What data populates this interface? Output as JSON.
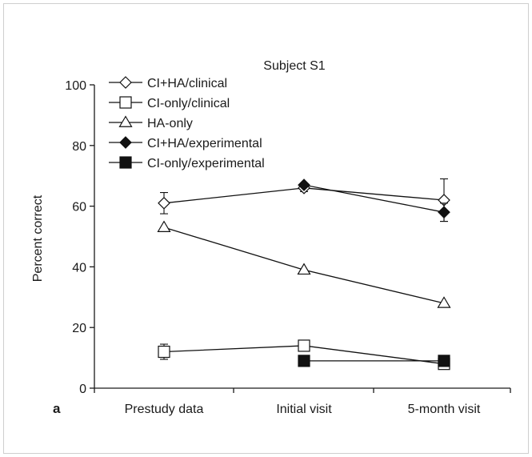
{
  "panel_label": "a",
  "chart_data": {
    "type": "line",
    "title": "Subject S1",
    "xlabel": "",
    "ylabel": "Percent correct",
    "categories": [
      "Prestudy data",
      "Initial visit",
      "5-month visit"
    ],
    "ylim": [
      0,
      100
    ],
    "yticks": [
      0,
      20,
      40,
      60,
      80,
      100
    ],
    "grid": false,
    "legend_position": "top-left",
    "series": [
      {
        "name": "CI+HA/clinical",
        "marker": "diamond-open",
        "values": [
          61,
          66,
          62
        ],
        "err": [
          3.5,
          1.2,
          7
        ]
      },
      {
        "name": "CI-only/clinical",
        "marker": "square-open",
        "values": [
          12,
          14,
          8
        ],
        "err": [
          2.5,
          0,
          0
        ]
      },
      {
        "name": "HA-only",
        "marker": "triangle-open",
        "values": [
          53,
          39,
          28
        ],
        "err": [
          0,
          0,
          0
        ]
      },
      {
        "name": "CI+HA/experimental",
        "marker": "diamond-filled",
        "values": [
          null,
          67,
          58
        ],
        "err": [
          null,
          0,
          3
        ]
      },
      {
        "name": "CI-only/experimental",
        "marker": "square-filled",
        "values": [
          null,
          9,
          9
        ],
        "err": [
          null,
          0,
          0
        ]
      }
    ]
  }
}
